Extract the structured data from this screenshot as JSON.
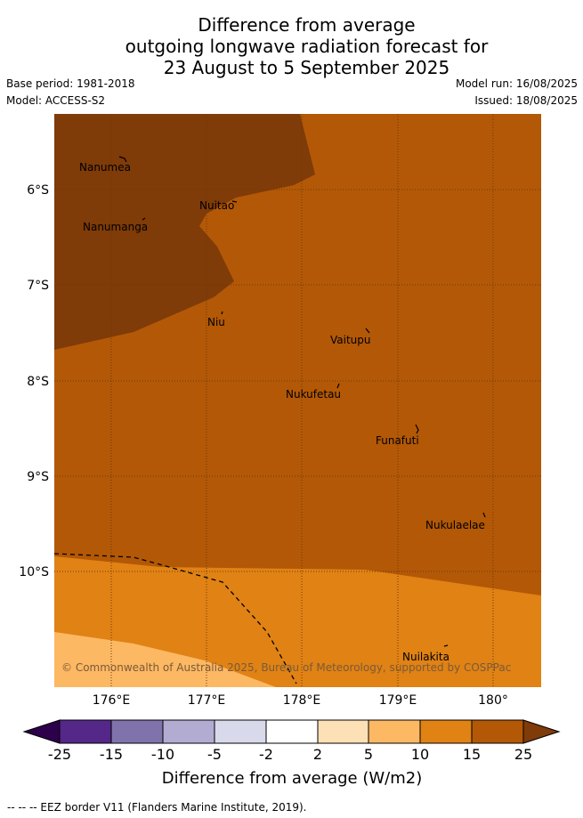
{
  "header": {
    "title_line1": "Difference from average",
    "title_line2": "outgoing longwave radiation forecast for",
    "title_line3": "23 August to 5 September 2025",
    "base_period": "Base period: 1981-2018",
    "model": "Model: ACCESS-S2",
    "model_run": "Model run: 16/08/2025",
    "issued": "Issued: 18/08/2025"
  },
  "map": {
    "latitude_labels": [
      "6°S",
      "7°S",
      "8°S",
      "9°S",
      "10°S"
    ],
    "longitude_labels": [
      "176°E",
      "177°E",
      "178°E",
      "179°E",
      "180°"
    ],
    "islands": [
      "Nanumea",
      "Nuitao",
      "Nanumanga",
      "Niu",
      "Vaitupu",
      "Nukufetau",
      "Funafuti",
      "Nukulaelae",
      "Nuilakita"
    ],
    "copyright": "© Commonwealth of Australia 2025, Bureau of Meteorology, supported by COSPPac",
    "colors": {
      "band_15_25": "#b35806",
      "band_above_25": "#7f3b08",
      "band_10_15": "#e08214",
      "band_5_10": "#fdb863",
      "grid": "#6b3a0a"
    }
  },
  "colorbar": {
    "tick_labels": [
      "-25",
      "-15",
      "-10",
      "-5",
      "-2",
      "2",
      "5",
      "10",
      "15",
      "25"
    ],
    "colors": [
      "#2d004b",
      "#542788",
      "#8073ac",
      "#b2abd2",
      "#d8daeb",
      "#ffffff",
      "#fee0b6",
      "#fdb863",
      "#e08214",
      "#b35806",
      "#7f3b08"
    ],
    "title": "Difference from average (W/m2)"
  },
  "footer": {
    "legend": "-- -- -- EEZ border V11 (Flanders Marine Institute, 2019)."
  }
}
